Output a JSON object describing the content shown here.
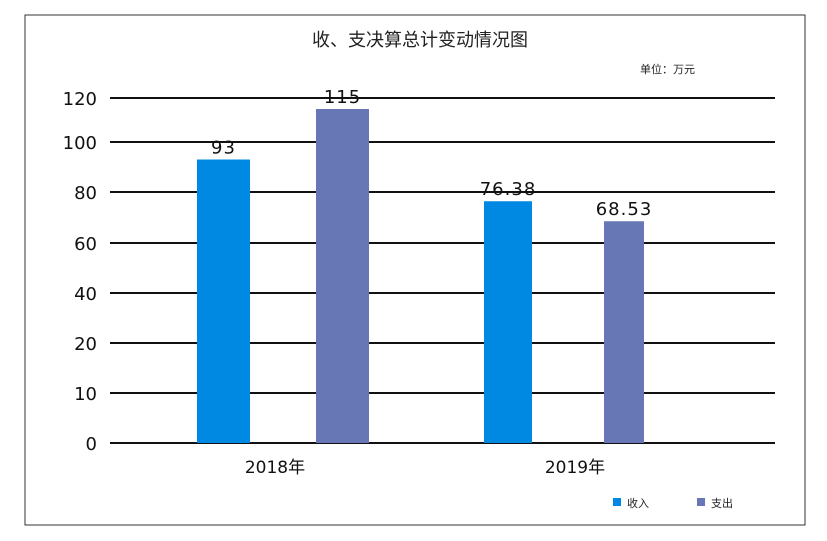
{
  "chart_data": {
    "type": "bar",
    "title": "收、支决算总计变动情况图",
    "unit_note": "单位：万元",
    "categories": [
      "2018年",
      "2019年"
    ],
    "series": [
      {
        "name": "收入",
        "values": [
          93,
          76.38
        ],
        "labels": [
          "93",
          "76.38"
        ],
        "color": "#0089e2"
      },
      {
        "name": "支出",
        "values": [
          115,
          68.53
        ],
        "labels": [
          "115",
          "68.53"
        ],
        "color": "#6777b6"
      }
    ],
    "y_ticks": [
      0,
      10,
      20,
      40,
      60,
      80,
      100,
      120
    ],
    "ylim": [
      0,
      120
    ],
    "grid": true,
    "legend_position": "bottom-right",
    "xlabel": "",
    "ylabel": ""
  }
}
